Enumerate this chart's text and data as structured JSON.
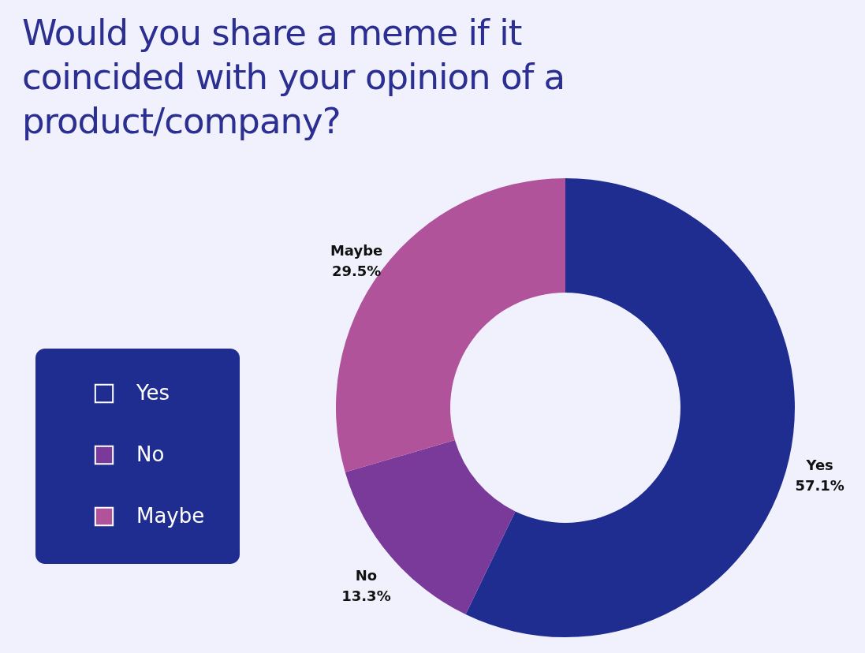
{
  "chart_data": {
    "type": "donut",
    "title": "Would you share a meme if it coincided with your opinion of a product/company?",
    "categories": [
      "Yes",
      "No",
      "Maybe"
    ],
    "values": [
      57.1,
      13.3,
      29.5
    ],
    "value_labels": [
      "57.1%",
      "13.3%",
      "29.5%"
    ],
    "colors": [
      "#1f2d91",
      "#7a3a9a",
      "#b0539b"
    ],
    "legend": "left"
  }
}
